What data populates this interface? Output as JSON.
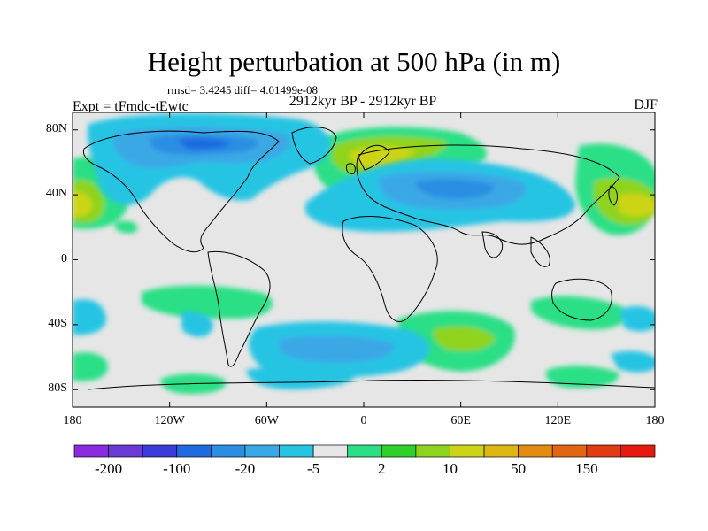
{
  "header": {
    "title": "Height perturbation at 500 hPa (in m)",
    "stats": "rmsd= 3.4245 diff= 4.01499e-08",
    "experiment": "Expt = tFmdc-tEwtc",
    "period": "2912kyr BP - 2912kyr BP",
    "season": "DJF"
  },
  "axes": {
    "lat_labels": [
      "80N",
      "40N",
      "0",
      "40S",
      "80S"
    ],
    "lat_values": [
      80,
      40,
      0,
      -40,
      -80
    ],
    "lon_labels": [
      "180",
      "120W",
      "60W",
      "0",
      "60E",
      "120E",
      "180"
    ],
    "lon_values": [
      -180,
      -120,
      -60,
      0,
      60,
      120,
      180
    ]
  },
  "colorbar": {
    "colors": [
      "#8a2be2",
      "#6a3ad6",
      "#3b3bd9",
      "#1f6ae0",
      "#2c8ee3",
      "#3aa8e6",
      "#25c4e3",
      "#e6e6e6",
      "#2adf86",
      "#2ed12a",
      "#8fd31f",
      "#cdd416",
      "#dcb613",
      "#e28d12",
      "#e26514",
      "#e23b14",
      "#e81a10"
    ],
    "labels": [
      "-200",
      "-100",
      "-20",
      "-5",
      "2",
      "10",
      "50",
      "150"
    ]
  },
  "palette": {
    "neutral": "#e6e6e6",
    "coast": "#000000"
  }
}
